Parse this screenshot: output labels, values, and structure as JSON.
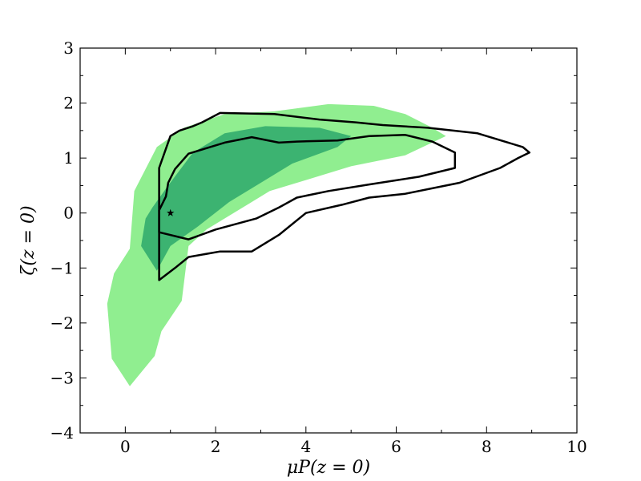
{
  "chart_data": {
    "type": "contour",
    "xlabel": "μP(z = 0)",
    "ylabel": "ζ(z = 0)",
    "xlim": [
      -1,
      10
    ],
    "ylim": [
      -4,
      3
    ],
    "x_ticks": [
      0,
      2,
      4,
      6,
      8,
      10
    ],
    "y_ticks": [
      -4,
      -3,
      -2,
      -1,
      0,
      1,
      2,
      3
    ],
    "x_tick_labels": [
      "0",
      "2",
      "4",
      "6",
      "8",
      "10"
    ],
    "y_tick_labels": [
      "−4",
      "−3",
      "−2",
      "−1",
      "0",
      "1",
      "2",
      "3"
    ],
    "grid": false,
    "legend": "none",
    "colors": {
      "light_fill": "#90ee90",
      "dark_fill": "#3cb371",
      "contour_line": "#000000",
      "marker": "#000000"
    },
    "filled_regions": [
      {
        "level": "outer",
        "color": "#90ee90",
        "points": [
          [
            0.1,
            -3.15
          ],
          [
            0.65,
            -2.6
          ],
          [
            0.8,
            -2.15
          ],
          [
            1.25,
            -1.6
          ],
          [
            1.4,
            -0.6
          ],
          [
            1.8,
            -0.3
          ],
          [
            2.5,
            0.05
          ],
          [
            3.2,
            0.4
          ],
          [
            4.0,
            0.6
          ],
          [
            5.0,
            0.85
          ],
          [
            6.2,
            1.05
          ],
          [
            7.1,
            1.4
          ],
          [
            6.8,
            1.55
          ],
          [
            6.2,
            1.8
          ],
          [
            5.5,
            1.95
          ],
          [
            4.5,
            1.98
          ],
          [
            3.3,
            1.85
          ],
          [
            2.2,
            1.8
          ],
          [
            1.3,
            1.55
          ],
          [
            0.7,
            1.2
          ],
          [
            0.2,
            0.4
          ],
          [
            0.1,
            -0.65
          ],
          [
            -0.25,
            -1.1
          ],
          [
            -0.4,
            -1.65
          ],
          [
            -0.3,
            -2.65
          ]
        ]
      },
      {
        "level": "inner",
        "color": "#3cb371",
        "points": [
          [
            0.7,
            -1.05
          ],
          [
            1.0,
            -0.6
          ],
          [
            1.6,
            -0.25
          ],
          [
            2.3,
            0.2
          ],
          [
            3.0,
            0.55
          ],
          [
            3.7,
            0.9
          ],
          [
            4.7,
            1.2
          ],
          [
            5.0,
            1.4
          ],
          [
            4.3,
            1.55
          ],
          [
            3.1,
            1.58
          ],
          [
            2.2,
            1.45
          ],
          [
            1.5,
            1.1
          ],
          [
            0.95,
            0.5
          ],
          [
            0.6,
            0.1
          ],
          [
            0.45,
            -0.1
          ],
          [
            0.35,
            -0.6
          ]
        ]
      }
    ],
    "contour_lines": [
      {
        "level": "outer",
        "points": [
          [
            0.75,
            -1.22
          ],
          [
            1.1,
            -1.0
          ],
          [
            1.4,
            -0.8
          ],
          [
            2.1,
            -0.7
          ],
          [
            2.8,
            -0.7
          ],
          [
            3.4,
            -0.4
          ],
          [
            4.0,
            0.0
          ],
          [
            4.8,
            0.15
          ],
          [
            5.4,
            0.28
          ],
          [
            6.2,
            0.35
          ],
          [
            7.4,
            0.55
          ],
          [
            8.3,
            0.82
          ],
          [
            8.7,
            1.0
          ],
          [
            8.95,
            1.1
          ],
          [
            8.8,
            1.2
          ],
          [
            7.8,
            1.45
          ],
          [
            6.7,
            1.55
          ],
          [
            5.7,
            1.6
          ],
          [
            5.1,
            1.65
          ],
          [
            4.3,
            1.7
          ],
          [
            3.3,
            1.8
          ],
          [
            2.1,
            1.82
          ],
          [
            1.7,
            1.65
          ],
          [
            1.5,
            1.58
          ],
          [
            1.2,
            1.5
          ],
          [
            1.0,
            1.4
          ],
          [
            0.75,
            0.82
          ]
        ]
      },
      {
        "level": "inner",
        "points": [
          [
            0.75,
            -0.35
          ],
          [
            1.4,
            -0.48
          ],
          [
            2.0,
            -0.3
          ],
          [
            2.9,
            -0.1
          ],
          [
            3.4,
            0.1
          ],
          [
            3.8,
            0.28
          ],
          [
            4.5,
            0.4
          ],
          [
            5.4,
            0.52
          ],
          [
            6.5,
            0.66
          ],
          [
            7.3,
            0.82
          ],
          [
            7.3,
            1.1
          ],
          [
            6.8,
            1.3
          ],
          [
            6.2,
            1.42
          ],
          [
            5.4,
            1.4
          ],
          [
            4.7,
            1.32
          ],
          [
            3.8,
            1.3
          ],
          [
            3.4,
            1.28
          ],
          [
            2.8,
            1.38
          ],
          [
            2.2,
            1.28
          ],
          [
            1.8,
            1.18
          ],
          [
            1.4,
            1.08
          ],
          [
            1.1,
            0.8
          ],
          [
            0.95,
            0.55
          ],
          [
            0.9,
            0.3
          ],
          [
            0.75,
            0.05
          ]
        ]
      }
    ],
    "markers": [
      {
        "x": 1.0,
        "y": 0.0,
        "symbol": "star"
      }
    ]
  }
}
